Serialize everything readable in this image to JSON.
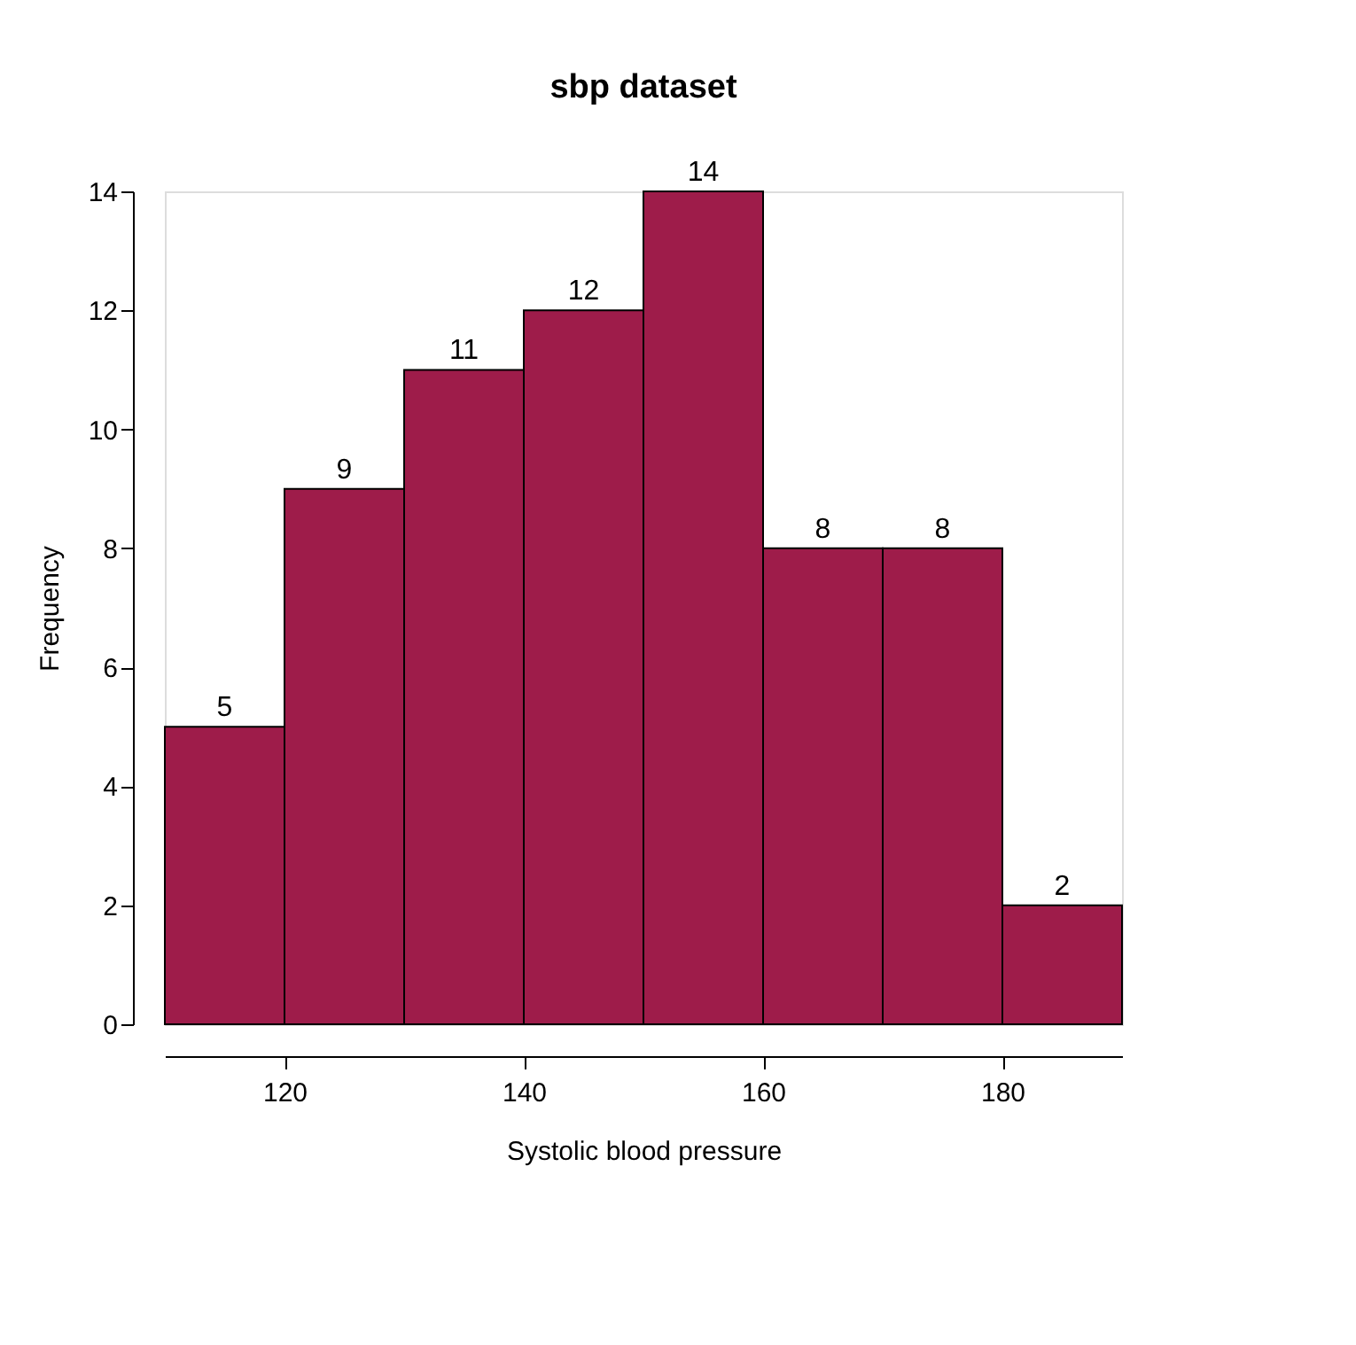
{
  "chart_data": {
    "type": "histogram",
    "title": "sbp dataset",
    "xlabel": "Systolic blood pressure",
    "ylabel": "Frequency",
    "bins": [
      110,
      120,
      130,
      140,
      150,
      160,
      170,
      180,
      190
    ],
    "values": [
      5,
      9,
      11,
      12,
      14,
      8,
      8,
      2
    ],
    "color": "#9e1c4a",
    "xlim": [
      110,
      190
    ],
    "xticks": [
      120,
      140,
      160,
      180
    ],
    "ylim": [
      0,
      14
    ],
    "yticks": [
      0,
      2,
      4,
      6,
      8,
      10,
      12,
      14
    ],
    "data_labels": true,
    "grid": false
  }
}
